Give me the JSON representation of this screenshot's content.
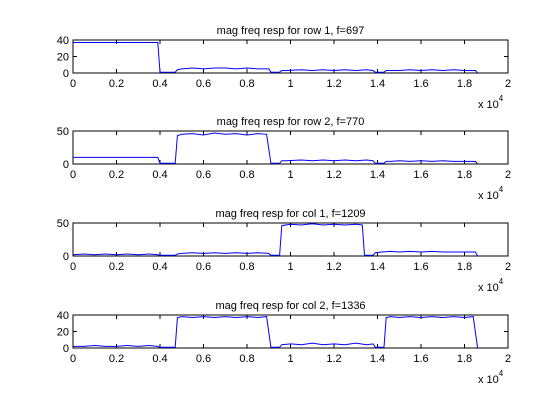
{
  "figure": {
    "background": "#ffffff"
  },
  "chart_data": [
    {
      "type": "line",
      "title": "mag freq resp for row 1, f=697",
      "xlabel": "",
      "ylabel": "",
      "xlim": [
        0,
        20000
      ],
      "ylim": [
        0,
        40
      ],
      "xticks": [
        0,
        2000,
        4000,
        6000,
        8000,
        10000,
        12000,
        14000,
        16000,
        18000,
        20000
      ],
      "xtick_labels": [
        "0",
        "0.2",
        "0.4",
        "0.6",
        "0.8",
        "1",
        "1.2",
        "1.4",
        "1.6",
        "1.8",
        "2"
      ],
      "yticks": [
        0,
        20,
        40
      ],
      "ytick_labels": [
        "0",
        "20",
        "40"
      ],
      "x_multiplier_base": "x 10",
      "x_multiplier_exp": "4",
      "grid": false,
      "series": [
        {
          "color": "#0000ff",
          "x": [
            0,
            3900,
            4000,
            4700,
            4800,
            5000,
            5500,
            6000,
            6500,
            7000,
            7500,
            8000,
            8500,
            9000,
            9100,
            9500,
            9600,
            9800,
            10500,
            11000,
            11500,
            12000,
            12500,
            13000,
            13500,
            13800,
            13900,
            14300,
            14400,
            14600,
            15000,
            15500,
            16000,
            16500,
            17000,
            17500,
            18000,
            18500,
            18600
          ],
          "y": [
            37,
            37,
            1,
            1,
            4,
            5,
            6,
            5,
            6,
            6,
            5,
            6,
            5,
            5,
            1,
            1,
            3,
            3,
            4,
            3,
            4,
            3,
            4,
            3,
            4,
            3,
            1,
            1,
            3,
            3,
            3,
            4,
            3,
            4,
            3,
            4,
            3,
            3,
            0
          ]
        }
      ]
    },
    {
      "type": "line",
      "title": "mag freq resp for row 2, f=770",
      "xlabel": "",
      "ylabel": "",
      "xlim": [
        0,
        20000
      ],
      "ylim": [
        0,
        50
      ],
      "xticks": [
        0,
        2000,
        4000,
        6000,
        8000,
        10000,
        12000,
        14000,
        16000,
        18000,
        20000
      ],
      "xtick_labels": [
        "0",
        "0.2",
        "0.4",
        "0.6",
        "0.8",
        "1",
        "1.2",
        "1.4",
        "1.6",
        "1.8",
        "2"
      ],
      "yticks": [
        0,
        50
      ],
      "ytick_labels": [
        "0",
        "50"
      ],
      "x_multiplier_base": "x 10",
      "x_multiplier_exp": "4",
      "grid": false,
      "series": [
        {
          "color": "#0000ff",
          "x": [
            0,
            3900,
            4000,
            4700,
            4800,
            5000,
            5500,
            6000,
            6500,
            7000,
            7500,
            8000,
            8500,
            8900,
            9100,
            9500,
            9600,
            9800,
            10500,
            11000,
            11500,
            12000,
            12500,
            13000,
            13500,
            13800,
            13900,
            14300,
            14400,
            14600,
            15000,
            15500,
            16000,
            16500,
            17000,
            17500,
            18000,
            18500,
            18600
          ],
          "y": [
            10,
            10,
            1,
            1,
            43,
            45,
            46,
            44,
            47,
            45,
            46,
            44,
            46,
            45,
            1,
            1,
            5,
            5,
            6,
            5,
            6,
            5,
            6,
            5,
            6,
            5,
            1,
            1,
            4,
            4,
            5,
            4,
            5,
            4,
            5,
            4,
            4,
            4,
            0
          ]
        }
      ]
    },
    {
      "type": "line",
      "title": "mag freq resp for col 1, f=1209",
      "xlabel": "",
      "ylabel": "",
      "xlim": [
        0,
        20000
      ],
      "ylim": [
        0,
        50
      ],
      "xticks": [
        0,
        2000,
        4000,
        6000,
        8000,
        10000,
        12000,
        14000,
        16000,
        18000,
        20000
      ],
      "xtick_labels": [
        "0",
        "0.2",
        "0.4",
        "0.6",
        "0.8",
        "1",
        "1.2",
        "1.4",
        "1.6",
        "1.8",
        "2"
      ],
      "yticks": [
        0,
        50
      ],
      "ytick_labels": [
        "0",
        "50"
      ],
      "x_multiplier_base": "x 10",
      "x_multiplier_exp": "4",
      "grid": false,
      "series": [
        {
          "color": "#0000ff",
          "x": [
            0,
            500,
            1000,
            1500,
            2000,
            2500,
            3000,
            3500,
            3900,
            4000,
            4700,
            4800,
            5000,
            5500,
            6000,
            6500,
            7000,
            7500,
            8000,
            8500,
            9000,
            9100,
            9500,
            9600,
            10000,
            10500,
            11000,
            11500,
            12000,
            12500,
            13000,
            13300,
            13400,
            13800,
            13900,
            14200,
            14600,
            15000,
            15500,
            16000,
            16500,
            17000,
            17500,
            18000,
            18500,
            18600
          ],
          "y": [
            2,
            3,
            2,
            3,
            2,
            3,
            2,
            3,
            2,
            1,
            1,
            3,
            4,
            5,
            4,
            5,
            4,
            5,
            4,
            5,
            4,
            1,
            1,
            46,
            48,
            47,
            49,
            47,
            48,
            47,
            48,
            47,
            1,
            1,
            5,
            6,
            7,
            6,
            7,
            6,
            7,
            6,
            6,
            6,
            6,
            0
          ]
        }
      ]
    },
    {
      "type": "line",
      "title": "mag freq resp for col 2, f=1336",
      "xlabel": "",
      "ylabel": "",
      "xlim": [
        0,
        20000
      ],
      "ylim": [
        0,
        40
      ],
      "xticks": [
        0,
        2000,
        4000,
        6000,
        8000,
        10000,
        12000,
        14000,
        16000,
        18000,
        20000
      ],
      "xtick_labels": [
        "0",
        "0.2",
        "0.4",
        "0.6",
        "0.8",
        "1",
        "1.2",
        "1.4",
        "1.6",
        "1.8",
        "2"
      ],
      "yticks": [
        0,
        20,
        40
      ],
      "ytick_labels": [
        "0",
        "20",
        "40"
      ],
      "x_multiplier_base": "x 10",
      "x_multiplier_exp": "4",
      "grid": false,
      "series": [
        {
          "color": "#0000ff",
          "x": [
            0,
            500,
            1000,
            1500,
            2000,
            2500,
            3000,
            3500,
            3900,
            4000,
            4700,
            4800,
            5000,
            5500,
            6000,
            6500,
            7000,
            7500,
            8000,
            8500,
            8900,
            9100,
            9500,
            9600,
            10000,
            10500,
            11000,
            11500,
            12000,
            12500,
            13000,
            13500,
            13800,
            13900,
            14300,
            14400,
            14600,
            15000,
            15500,
            16000,
            16500,
            17000,
            17500,
            18000,
            18400,
            18600
          ],
          "y": [
            2,
            2,
            3,
            2,
            2,
            3,
            2,
            3,
            2,
            1,
            1,
            37,
            38,
            37,
            38,
            37,
            38,
            37,
            38,
            37,
            38,
            1,
            1,
            4,
            5,
            4,
            6,
            4,
            5,
            4,
            6,
            4,
            5,
            1,
            1,
            37,
            38,
            37,
            38,
            37,
            38,
            37,
            38,
            37,
            38,
            0
          ]
        }
      ]
    }
  ]
}
